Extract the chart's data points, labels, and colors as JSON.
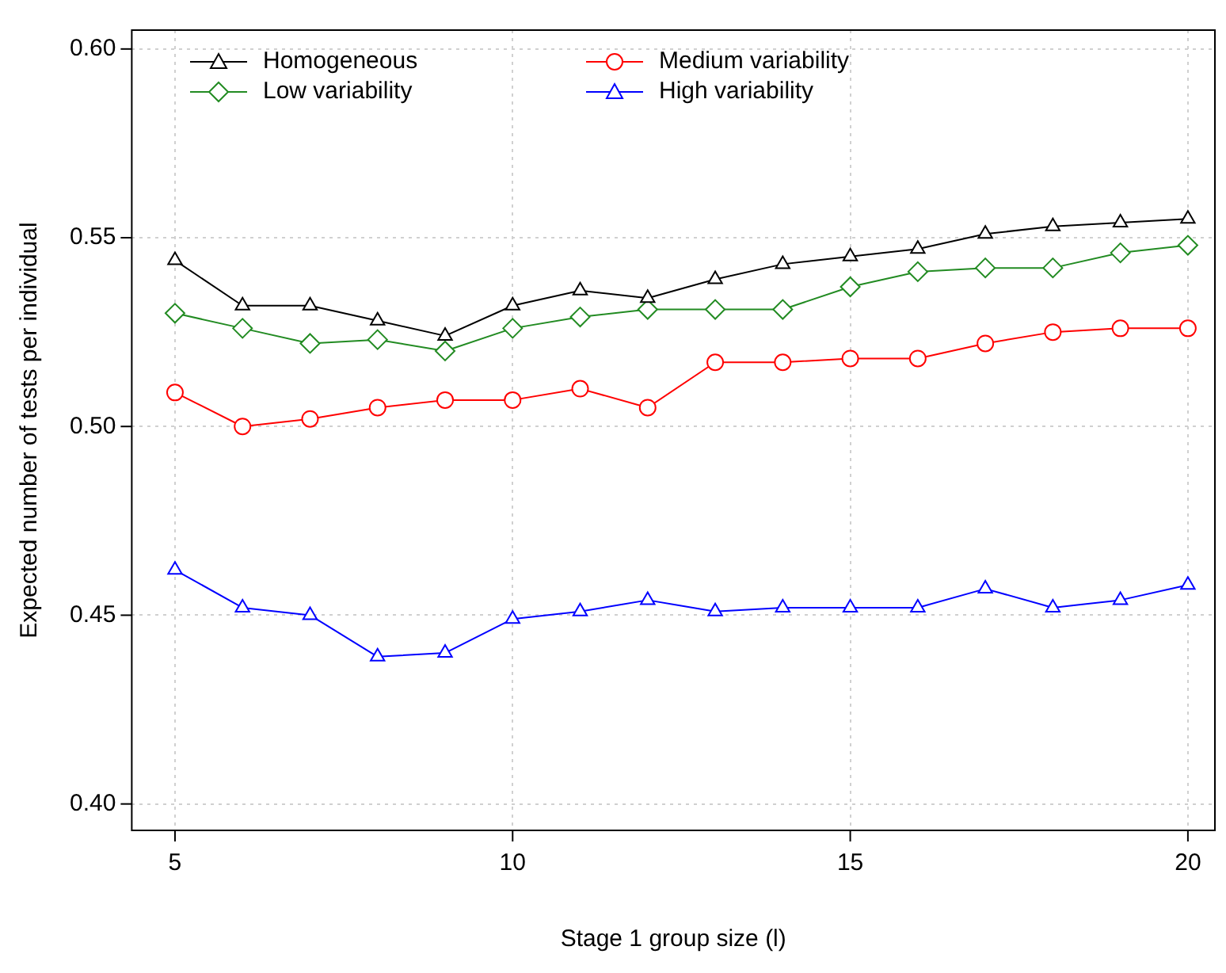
{
  "chart_data": {
    "type": "line",
    "xlabel": "Stage 1 group size (l)",
    "ylabel": "Expected number of tests per individual",
    "x": [
      5,
      6,
      7,
      8,
      9,
      10,
      11,
      12,
      13,
      14,
      15,
      16,
      17,
      18,
      19,
      20
    ],
    "series": [
      {
        "name": "Homogeneous",
        "color": "#000000",
        "marker": "triangle",
        "values": [
          0.544,
          0.532,
          0.532,
          0.528,
          0.524,
          0.532,
          0.536,
          0.534,
          0.539,
          0.543,
          0.545,
          0.547,
          0.551,
          0.553,
          0.554,
          0.555
        ]
      },
      {
        "name": "Low variability",
        "color": "#228b22",
        "marker": "diamond",
        "values": [
          0.53,
          0.526,
          0.522,
          0.523,
          0.52,
          0.526,
          0.529,
          0.531,
          0.531,
          0.531,
          0.537,
          0.541,
          0.542,
          0.542,
          0.546,
          0.548
        ]
      },
      {
        "name": "Medium variability",
        "color": "#ff0000",
        "marker": "circle",
        "values": [
          0.509,
          0.5,
          0.502,
          0.505,
          0.507,
          0.507,
          0.51,
          0.505,
          0.517,
          0.517,
          0.518,
          0.518,
          0.522,
          0.525,
          0.526,
          0.526
        ]
      },
      {
        "name": "High variability",
        "color": "#0000ff",
        "marker": "triangle",
        "values": [
          0.462,
          0.452,
          0.45,
          0.439,
          0.44,
          0.449,
          0.451,
          0.454,
          0.451,
          0.452,
          0.452,
          0.452,
          0.457,
          0.452,
          0.454,
          0.458
        ]
      }
    ],
    "xlim": [
      4.36,
      20.4
    ],
    "xticks": [
      5,
      10,
      15,
      20
    ],
    "ylim": [
      0.393,
      0.605
    ],
    "yticks": [
      {
        "value": 0.4,
        "label": "0.40"
      },
      {
        "value": 0.45,
        "label": "0.45"
      },
      {
        "value": 0.5,
        "label": "0.50"
      },
      {
        "value": 0.55,
        "label": "0.55"
      },
      {
        "value": 0.6,
        "label": "0.60"
      }
    ],
    "grid": true,
    "legend": "top left",
    "line_style": "solid"
  }
}
